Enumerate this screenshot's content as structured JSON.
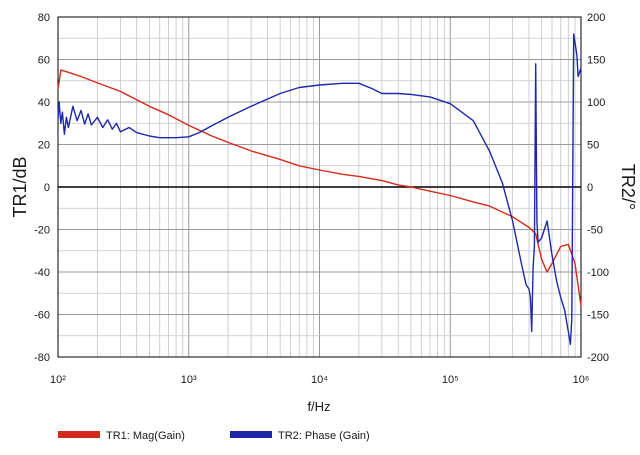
{
  "chart_data": {
    "type": "line",
    "xlabel": "f/Hz",
    "ylabel_left": "TR1/dB",
    "ylabel_right": "TR2/°",
    "x_scale": "log",
    "xlim": [
      100,
      1000000
    ],
    "ylim_left": [
      -80,
      80
    ],
    "ylim_right": [
      -200,
      200
    ],
    "grid": true,
    "legend_position": "bottom-left",
    "x_ticks": [
      {
        "value": 100,
        "label": "10²"
      },
      {
        "value": 1000,
        "label": "10³"
      },
      {
        "value": 10000,
        "label": "10⁴"
      },
      {
        "value": 100000,
        "label": "10⁵"
      },
      {
        "value": 1000000,
        "label": "10⁶"
      }
    ],
    "y_ticks_left": [
      {
        "value": 80,
        "label": "80"
      },
      {
        "value": 60,
        "label": "60"
      },
      {
        "value": 40,
        "label": "40"
      },
      {
        "value": 20,
        "label": "20"
      },
      {
        "value": 0,
        "label": "0"
      },
      {
        "value": -20,
        "label": "-20"
      },
      {
        "value": -40,
        "label": "-40"
      },
      {
        "value": -60,
        "label": "-60"
      },
      {
        "value": -80,
        "label": "-80"
      }
    ],
    "y_ticks_right": [
      {
        "value": 200,
        "label": "200"
      },
      {
        "value": 150,
        "label": "150"
      },
      {
        "value": 100,
        "label": "100"
      },
      {
        "value": 50,
        "label": "50"
      },
      {
        "value": 0,
        "label": "0"
      },
      {
        "value": -50,
        "label": "-50"
      },
      {
        "value": -100,
        "label": "-100"
      },
      {
        "value": -150,
        "label": "-150"
      },
      {
        "value": -200,
        "label": "-200"
      }
    ],
    "series": [
      {
        "name": "TR1: Mag(Gain)",
        "axis": "left",
        "color": "#d42a1c",
        "x": [
          100,
          105,
          120,
          150,
          200,
          300,
          500,
          700,
          1000,
          1500,
          2000,
          3000,
          5000,
          7000,
          10000,
          15000,
          20000,
          30000,
          40000,
          50000,
          70000,
          100000,
          150000,
          200000,
          300000,
          400000,
          450000,
          500000,
          550000,
          600000,
          700000,
          800000,
          900000,
          1000000
        ],
        "y": [
          46,
          55,
          54,
          52,
          49,
          45,
          38,
          34,
          29,
          24,
          21,
          17,
          13,
          10,
          8,
          6,
          5,
          3,
          1,
          0,
          -2,
          -4,
          -7,
          -9,
          -14,
          -19,
          -22,
          -34,
          -40,
          -36,
          -28,
          -27,
          -36,
          -56
        ]
      },
      {
        "name": "TR2: Phase (Gain)",
        "axis": "right",
        "color": "#1e28a8",
        "x": [
          100,
          102,
          105,
          108,
          112,
          116,
          120,
          130,
          140,
          150,
          160,
          170,
          180,
          200,
          220,
          240,
          260,
          280,
          300,
          350,
          400,
          500,
          600,
          700,
          800,
          1000,
          1200,
          1500,
          2000,
          3000,
          5000,
          7000,
          10000,
          15000,
          20000,
          25000,
          30000,
          40000,
          50000,
          70000,
          100000,
          150000,
          200000,
          250000,
          300000,
          350000,
          380000,
          400000,
          410000,
          420000,
          430000,
          440000,
          450000,
          460000,
          470000,
          500000,
          550000,
          600000,
          650000,
          700000,
          750000,
          800000,
          830000,
          850000,
          880000,
          900000,
          930000,
          950000,
          1000000
        ],
        "y": [
          80,
          100,
          75,
          88,
          62,
          82,
          70,
          95,
          78,
          90,
          74,
          86,
          73,
          82,
          70,
          79,
          68,
          75,
          65,
          70,
          64,
          60,
          58,
          58,
          58,
          59,
          64,
          72,
          82,
          95,
          110,
          117,
          120,
          122,
          122,
          116,
          110,
          110,
          109,
          106,
          98,
          78,
          42,
          5,
          -40,
          -90,
          -115,
          -120,
          -130,
          -170,
          -95,
          -70,
          145,
          -40,
          -65,
          -60,
          -40,
          -80,
          -110,
          -130,
          -145,
          -170,
          -185,
          -155,
          180,
          170,
          155,
          130,
          140
        ]
      }
    ]
  }
}
